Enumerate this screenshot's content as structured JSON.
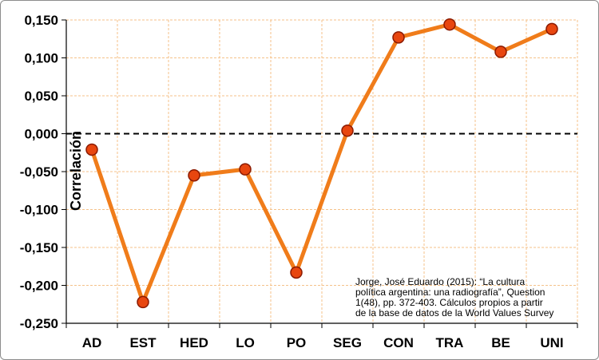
{
  "chart_data": {
    "type": "line",
    "title": "",
    "xlabel": "",
    "ylabel": "Correlación",
    "categories": [
      "AD",
      "EST",
      "HED",
      "LO",
      "PO",
      "SEG",
      "CON",
      "TRA",
      "BE",
      "UNI"
    ],
    "values": [
      -0.021,
      -0.222,
      -0.055,
      -0.047,
      -0.183,
      0.004,
      0.127,
      0.144,
      0.108,
      0.138
    ],
    "ylim": [
      -0.25,
      0.15
    ],
    "yticks": [
      0.15,
      0.1,
      0.05,
      0.0,
      -0.05,
      -0.1,
      -0.15,
      -0.2,
      -0.25
    ],
    "ytick_labels": [
      "0,150",
      "0,100",
      "0,050",
      "0,000",
      "-0,050",
      "-0,100",
      "-0,150",
      "-0,200",
      "-0,250"
    ],
    "grid": true,
    "zero_line": "dashed",
    "legend": "none",
    "line_color": "#f07c1a",
    "marker_fill": "#e8460f",
    "marker_edge": "#8b1a00",
    "grid_color": "#f5c28a"
  },
  "source_note": "Jorge, José Eduardo (2015): “La cultura\npolítica argentina: una radiografía”, Question\n1(48), pp. 372-403. Cálculos propios a partir\nde la base de datos de la World Values Survey"
}
